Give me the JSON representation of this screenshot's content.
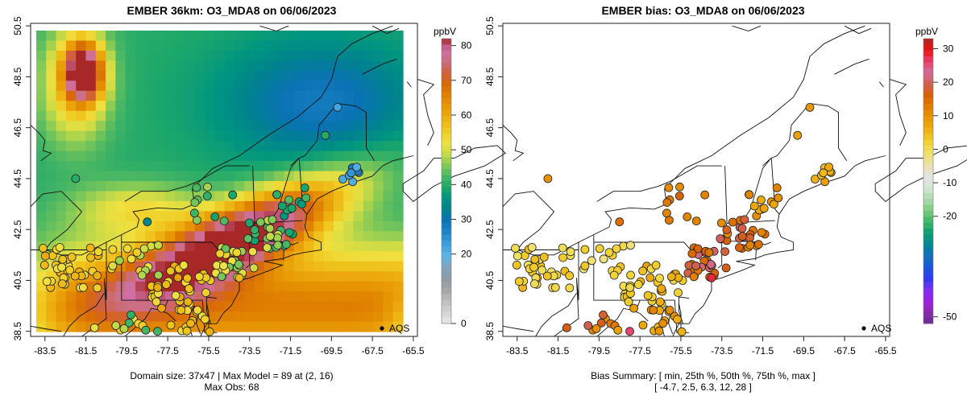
{
  "panels": [
    {
      "id": "model",
      "title": "EMBER 36km: O3_MDA8 on 06/06/2023",
      "caption_lines": [
        "Domain size: 37x47 | Max Model = 89 at (2, 16)",
        "Max Obs: 68"
      ],
      "legend_label": "AQS",
      "colorbar": {
        "unit": "ppbV",
        "ticks": [
          "80",
          "70",
          "60",
          "50",
          "40",
          "30",
          "20",
          "0"
        ],
        "tick_values": [
          80,
          70,
          60,
          50,
          40,
          30,
          20,
          0
        ],
        "colors": [
          "#e8e8e8",
          "#d4d4d4",
          "#bdbdbd",
          "#a5a5a5",
          "#8f9aa5",
          "#7fa4c0",
          "#5ab4e5",
          "#3a9fdc",
          "#1f86c8",
          "#0a72b5",
          "#00828f",
          "#009580",
          "#1ea86a",
          "#4db863",
          "#8ccc55",
          "#cfdc45",
          "#f0e040",
          "#f0c820",
          "#eeb010",
          "#e89a05",
          "#e08200",
          "#d86a05",
          "#d06040",
          "#cc6e80",
          "#d070a8",
          "#a82828"
        ],
        "range": [
          0,
          82
        ]
      },
      "x_ticks": [
        "-83.5",
        "-81.5",
        "-79.5",
        "-77.5",
        "-75.5",
        "-73.5",
        "-71.5",
        "-69.5",
        "-67.5",
        "-65.5"
      ],
      "y_ticks": [
        "50.5",
        "48.5",
        "46.5",
        "44.5",
        "42.5",
        "40.5",
        "38.5"
      ]
    },
    {
      "id": "bias",
      "title": "EMBER bias: O3_MDA8 on 06/06/2023",
      "caption_lines": [
        "Bias Summary: [ min, 25th %, 50th %, 75th %, max ]",
        "[ -4.7,  2.5,  6.3,  12,  28 ]"
      ],
      "legend_label": "AQS",
      "colorbar": {
        "unit": "ppbV",
        "ticks": [
          "30",
          "20",
          "10",
          "0",
          "-10",
          "-20",
          "-50"
        ],
        "tick_values": [
          30,
          20,
          10,
          0,
          -10,
          -20,
          -50
        ],
        "colors": [
          "#6a2a8a",
          "#8a2ab0",
          "#a020e0",
          "#7a30f0",
          "#2a3af0",
          "#1a5ad8",
          "#1070b8",
          "#008a90",
          "#10a070",
          "#40b868",
          "#80cc80",
          "#b0dcb0",
          "#d8e8d8",
          "#e4e4e4",
          "#ece0a8",
          "#f0e060",
          "#f0d030",
          "#eeb010",
          "#e89800",
          "#e07c00",
          "#d86000",
          "#d06050",
          "#d06c98",
          "#e84070",
          "#f01010",
          "#a82828"
        ],
        "range": [
          -52,
          33
        ]
      },
      "x_ticks": [
        "-83.5",
        "-81.5",
        "-79.5",
        "-77.5",
        "-75.5",
        "-73.5",
        "-71.5",
        "-69.5",
        "-67.5",
        "-65.5"
      ],
      "y_ticks": [
        "50.5",
        "48.5",
        "46.5",
        "44.5",
        "42.5",
        "40.5",
        "38.5"
      ]
    }
  ],
  "bias_summary": {
    "min": -4.7,
    "p25": 2.5,
    "p50": 6.3,
    "p75": 12,
    "max": 28
  },
  "domain": {
    "nx": 37,
    "ny": 47,
    "max_model": 89,
    "max_model_at": "(2, 16)",
    "max_obs": 68
  },
  "map_extent": {
    "lon": [
      -84.2,
      -65.3
    ],
    "lat": [
      38.3,
      50.6
    ]
  }
}
